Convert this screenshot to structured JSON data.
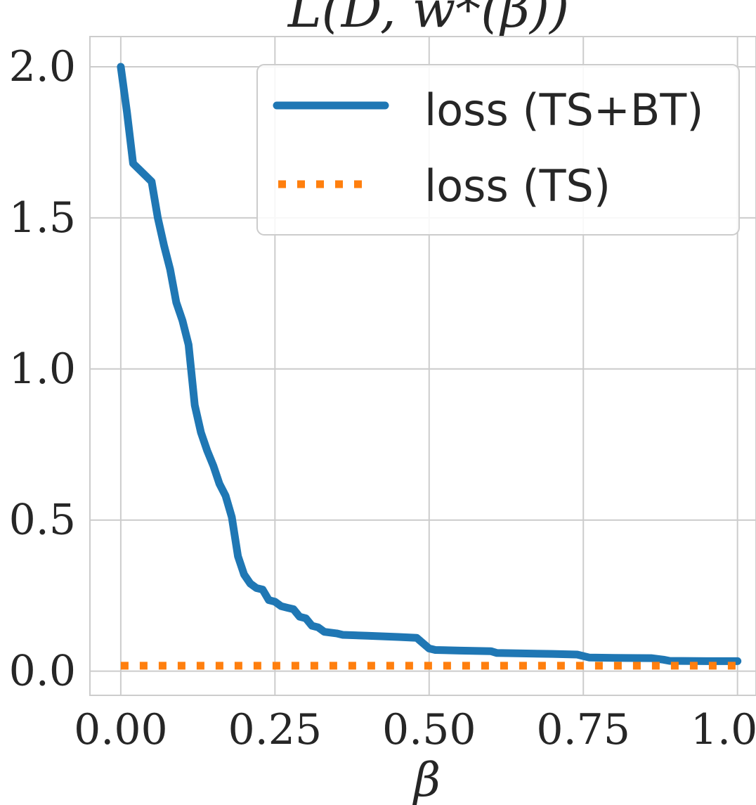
{
  "chart_data": {
    "type": "line",
    "title": "L(D, w*(β))",
    "xlabel": "β",
    "ylabel": "",
    "xlim": [
      -0.05,
      1.03
    ],
    "ylim": [
      -0.08,
      2.1
    ],
    "x_ticks": [
      0.0,
      0.25,
      0.5,
      0.75,
      1.0
    ],
    "x_tick_labels": [
      "0.00",
      "0.25",
      "0.50",
      "0.75",
      "1.00"
    ],
    "y_ticks": [
      0.0,
      0.5,
      1.0,
      1.5,
      2.0
    ],
    "y_tick_labels": [
      "0.0",
      "0.5",
      "1.0",
      "1.5",
      "2.0"
    ],
    "grid": true,
    "legend_position": "top-right",
    "series": [
      {
        "name": "loss (TS+BT)",
        "color": "#1f77b4",
        "style": "solid",
        "points": [
          [
            0.0,
            2.0
          ],
          [
            0.01,
            1.85
          ],
          [
            0.02,
            1.68
          ],
          [
            0.03,
            1.66
          ],
          [
            0.04,
            1.64
          ],
          [
            0.05,
            1.62
          ],
          [
            0.06,
            1.5
          ],
          [
            0.07,
            1.41
          ],
          [
            0.08,
            1.33
          ],
          [
            0.09,
            1.22
          ],
          [
            0.1,
            1.16
          ],
          [
            0.11,
            1.08
          ],
          [
            0.12,
            0.88
          ],
          [
            0.13,
            0.79
          ],
          [
            0.14,
            0.73
          ],
          [
            0.15,
            0.68
          ],
          [
            0.16,
            0.62
          ],
          [
            0.17,
            0.58
          ],
          [
            0.18,
            0.51
          ],
          [
            0.19,
            0.38
          ],
          [
            0.2,
            0.32
          ],
          [
            0.21,
            0.29
          ],
          [
            0.22,
            0.275
          ],
          [
            0.23,
            0.27
          ],
          [
            0.24,
            0.235
          ],
          [
            0.25,
            0.23
          ],
          [
            0.26,
            0.215
          ],
          [
            0.27,
            0.21
          ],
          [
            0.28,
            0.205
          ],
          [
            0.29,
            0.18
          ],
          [
            0.3,
            0.175
          ],
          [
            0.31,
            0.15
          ],
          [
            0.32,
            0.145
          ],
          [
            0.33,
            0.13
          ],
          [
            0.35,
            0.125
          ],
          [
            0.36,
            0.12
          ],
          [
            0.4,
            0.117
          ],
          [
            0.45,
            0.113
          ],
          [
            0.48,
            0.11
          ],
          [
            0.5,
            0.075
          ],
          [
            0.51,
            0.07
          ],
          [
            0.55,
            0.068
          ],
          [
            0.6,
            0.066
          ],
          [
            0.61,
            0.06
          ],
          [
            0.7,
            0.057
          ],
          [
            0.74,
            0.055
          ],
          [
            0.76,
            0.045
          ],
          [
            0.8,
            0.044
          ],
          [
            0.86,
            0.043
          ],
          [
            0.88,
            0.038
          ],
          [
            0.89,
            0.034
          ],
          [
            0.95,
            0.033
          ],
          [
            1.0,
            0.033
          ]
        ]
      },
      {
        "name": "loss (TS)",
        "color": "#ff7f0e",
        "style": "dotted",
        "points": [
          [
            0.0,
            0.018
          ],
          [
            1.0,
            0.018
          ]
        ]
      }
    ]
  }
}
